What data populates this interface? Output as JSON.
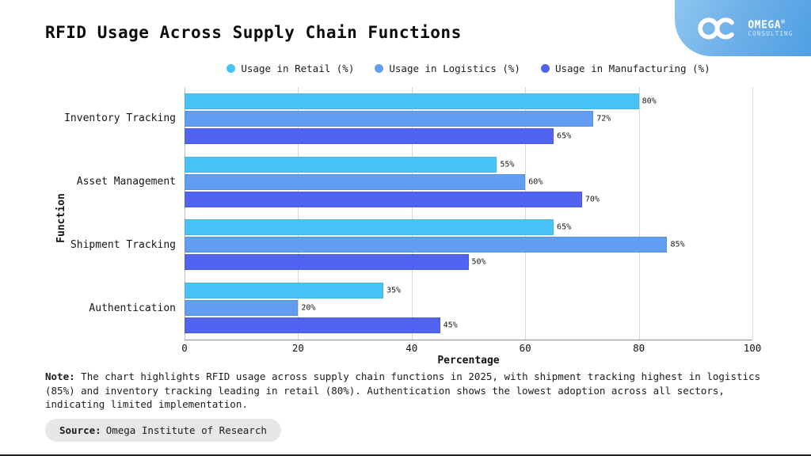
{
  "header": {
    "title": "RFID Usage Across Supply Chain Functions",
    "logo": {
      "brand": "OMEGA",
      "registered": "®",
      "subtitle": "CONSULTING",
      "icon": "infinity-icon"
    }
  },
  "chart_data": {
    "type": "bar",
    "orientation": "horizontal",
    "title": "RFID Usage Across Supply Chain Functions",
    "categories": [
      "Inventory Tracking",
      "Asset Management",
      "Shipment Tracking",
      "Authentication"
    ],
    "series": [
      {
        "name": "Usage in Retail (%)",
        "color": "#48C3F5",
        "values": [
          80,
          55,
          65,
          35
        ]
      },
      {
        "name": "Usage in Logistics (%)",
        "color": "#619EF2",
        "values": [
          72,
          60,
          85,
          20
        ]
      },
      {
        "name": "Usage in Manufacturing (%)",
        "color": "#5164F0",
        "values": [
          65,
          70,
          50,
          45
        ]
      }
    ],
    "xlabel": "Percentage",
    "ylabel": "Function",
    "xlim": [
      0,
      100
    ],
    "xticks": [
      0,
      20,
      40,
      60,
      80,
      100
    ],
    "value_label_suffix": "%",
    "grid": "vertical",
    "legend_position": "top-center"
  },
  "note": {
    "prefix": "Note:",
    "text": " The chart highlights RFID usage across supply chain functions in 2025, with shipment tracking highest in logistics (85%) and inventory tracking leading in retail (80%). Authentication shows the lowest adoption across all sectors, indicating limited implementation."
  },
  "source": {
    "prefix": "Source:",
    "text": "Omega Institute of Research"
  }
}
